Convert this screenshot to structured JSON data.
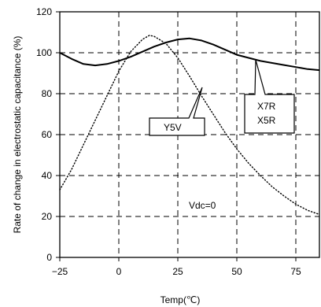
{
  "chart_data": {
    "type": "line",
    "xlabel": "Temp(℃)",
    "ylabel": "Rate of change in electrostatic capacitance (%)",
    "xlim": [
      -25,
      85
    ],
    "ylim": [
      0,
      120
    ],
    "xticks": [
      -25,
      0,
      25,
      50,
      75
    ],
    "xtick_labels": [
      "−25",
      "0",
      "25",
      "50",
      "75"
    ],
    "yticks": [
      0,
      20,
      40,
      60,
      80,
      100,
      120
    ],
    "ytick_labels": [
      "0",
      "20",
      "40",
      "60",
      "80",
      "100",
      "120"
    ],
    "grid": "dashed",
    "series": [
      {
        "name": "X7R X5R",
        "style": "solid",
        "x": [
          -25,
          -20,
          -15,
          -10,
          -5,
          0,
          5,
          10,
          15,
          20,
          25,
          30,
          35,
          40,
          45,
          50,
          55,
          60,
          65,
          70,
          75,
          80,
          85
        ],
        "y": [
          100,
          97,
          94.5,
          93.8,
          94.5,
          96,
          98,
          100.5,
          103,
          105,
          106.5,
          107,
          106,
          104,
          101.5,
          99,
          97.5,
          96,
          95,
          94,
          93,
          92,
          91.5
        ]
      },
      {
        "name": "Y5V",
        "style": "dotted",
        "x": [
          -25,
          -20,
          -15,
          -10,
          -5,
          0,
          5,
          10,
          13,
          15,
          20,
          25,
          30,
          35,
          40,
          45,
          50,
          55,
          60,
          65,
          70,
          75,
          80,
          85
        ],
        "y": [
          33,
          43,
          55,
          67,
          79,
          91,
          100.5,
          106.5,
          108.5,
          108,
          104.5,
          97.5,
          88.5,
          79,
          70,
          61,
          53,
          46,
          40,
          34.5,
          30,
          26,
          23,
          21
        ]
      }
    ],
    "annotations": [
      {
        "text": "Y5V",
        "x": 36,
        "y": 82
      },
      {
        "text": "X7R",
        "x": 59,
        "y": 96
      },
      {
        "text": "X5R",
        "x": 59,
        "y": 96
      },
      {
        "text": "Vdc=0",
        "x": 0,
        "y": 0
      }
    ]
  }
}
